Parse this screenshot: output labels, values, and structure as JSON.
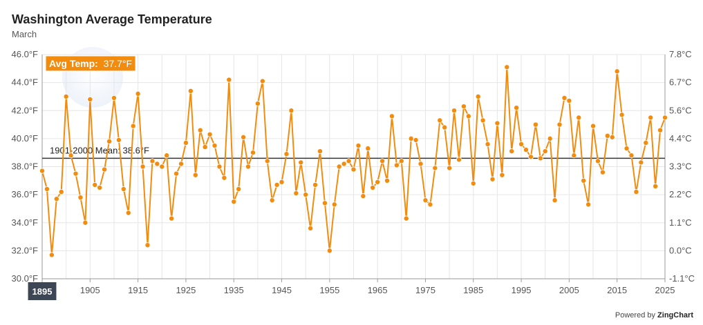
{
  "title": "Washington Average Temperature",
  "subtitle": "March",
  "tooltip": {
    "label": "Avg Temp:",
    "value": "37.7°F",
    "year": "1895"
  },
  "mean_line": {
    "label": "1901-2000 Mean: 38.6°F",
    "value": 38.6
  },
  "credit": {
    "prefix": "Powered by",
    "brand": "ZingChart"
  },
  "colors": {
    "series": "#f28c0f",
    "mean": "#333333",
    "tooltip": "#f28c0f",
    "grid": "#e6e6e6"
  },
  "chart_data": {
    "type": "line",
    "title": "Washington Average Temperature",
    "subtitle": "March",
    "xlim": [
      1895,
      2025
    ],
    "ylim": [
      30,
      46
    ],
    "y_ticks": [
      "30.0°F",
      "32.0°F",
      "34.0°F",
      "36.0°F",
      "38.0°F",
      "40.0°F",
      "42.0°F",
      "44.0°F",
      "46.0°F"
    ],
    "y2_ticks": [
      "-1.1°C",
      "0.0°C",
      "1.1°C",
      "2.2°C",
      "3.3°C",
      "4.4°C",
      "5.6°C",
      "6.7°C",
      "7.8°C"
    ],
    "x_ticks": [
      "1895",
      "1905",
      "1915",
      "1925",
      "1935",
      "1945",
      "1955",
      "1965",
      "1975",
      "1985",
      "1995",
      "2005",
      "2015",
      "2025"
    ],
    "grid": true,
    "series": [
      {
        "x": [
          1895,
          1896,
          1897,
          1898,
          1899,
          1900,
          1901,
          1902,
          1903,
          1904,
          1905,
          1906,
          1907,
          1908,
          1909,
          1910,
          1911,
          1912,
          1913,
          1914,
          1915,
          1916,
          1917,
          1918,
          1919,
          1920,
          1921,
          1922,
          1923,
          1924,
          1925,
          1926,
          1927,
          1928,
          1929,
          1930,
          1931,
          1932,
          1933,
          1934,
          1935,
          1936,
          1937,
          1938,
          1939,
          1940,
          1941,
          1942,
          1943,
          1944,
          1945,
          1946,
          1947,
          1948,
          1949,
          1950,
          1951,
          1952,
          1953,
          1954,
          1955,
          1956,
          1957,
          1958,
          1959,
          1960,
          1961,
          1962,
          1963,
          1964,
          1965,
          1966,
          1967,
          1968,
          1969,
          1970,
          1971,
          1972,
          1973,
          1974,
          1975,
          1976,
          1977,
          1978,
          1979,
          1980,
          1981,
          1982,
          1983,
          1984,
          1985,
          1986,
          1987,
          1988,
          1989,
          1990,
          1991,
          1992,
          1993,
          1994,
          1995,
          1996,
          1997,
          1998,
          1999,
          2000,
          2001,
          2002,
          2003,
          2004,
          2005,
          2006,
          2007,
          2008,
          2009,
          2010,
          2011,
          2012,
          2013,
          2014,
          2015,
          2016,
          2017,
          2018,
          2019,
          2020,
          2021,
          2022,
          2023,
          2024,
          2025
        ],
        "values": [
          37.7,
          36.4,
          31.7,
          35.7,
          36.2,
          43.0,
          38.8,
          37.5,
          35.8,
          34.0,
          42.8,
          36.7,
          36.5,
          37.8,
          39.8,
          42.9,
          39.9,
          36.4,
          34.7,
          40.9,
          43.2,
          38.0,
          32.4,
          38.4,
          38.2,
          38.0,
          38.8,
          34.3,
          37.5,
          38.2,
          39.7,
          43.4,
          37.4,
          40.6,
          39.4,
          40.3,
          39.5,
          38.0,
          37.2,
          44.2,
          35.5,
          36.4,
          40.1,
          38.0,
          39.0,
          42.5,
          44.1,
          38.4,
          35.6,
          36.7,
          36.9,
          38.9,
          42.0,
          36.1,
          38.3,
          36.0,
          33.6,
          36.7,
          39.1,
          35.4,
          32.0,
          35.3,
          38.0,
          38.2,
          38.4,
          37.8,
          39.5,
          35.9,
          39.3,
          36.5,
          36.9,
          38.4,
          37.0,
          41.6,
          38.1,
          38.4,
          34.3,
          40.0,
          39.9,
          38.2,
          35.6,
          35.3,
          37.9,
          41.3,
          40.8,
          37.9,
          42.0,
          38.5,
          42.3,
          41.6,
          36.8,
          43.0,
          41.3,
          39.6,
          37.1,
          41.1,
          37.4,
          45.1,
          39.1,
          42.2,
          39.6,
          39.2,
          38.7,
          41.0,
          38.6,
          39.1,
          40.0,
          35.6,
          41.0,
          42.9,
          42.7,
          38.8,
          41.5,
          37.0,
          35.3,
          40.9,
          38.4,
          37.6,
          40.2,
          40.1,
          44.8,
          41.7,
          39.3,
          38.8,
          36.2,
          38.3,
          39.7,
          41.5,
          36.6,
          40.6,
          41.5
        ]
      }
    ]
  }
}
